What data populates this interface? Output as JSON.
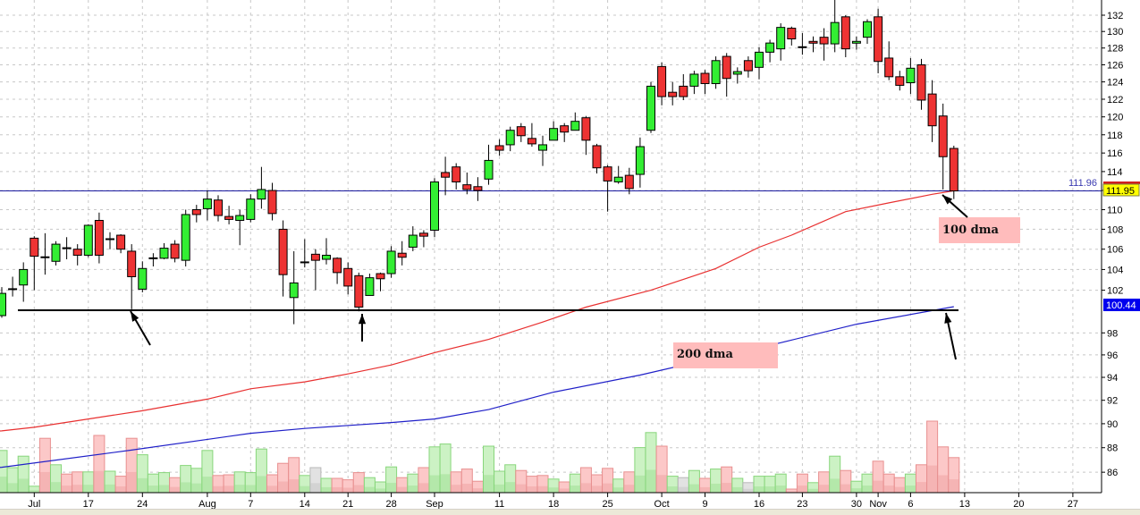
{
  "chart_data": {
    "type": "candlestick",
    "y_scale": "log",
    "grid": true,
    "colors": {
      "up": "#33ee33",
      "down": "#ee3333",
      "ma100": "#e83030",
      "ma200": "#2020c8",
      "price_line": "#1a1aa0",
      "support_line": "#000000"
    },
    "y_ticks": [
      "132",
      "130",
      "128",
      "126",
      "124",
      "122",
      "120",
      "118",
      "116",
      "114",
      "110",
      "108",
      "106",
      "104",
      "102",
      "98",
      "96",
      "94",
      "92",
      "90",
      "88",
      "86"
    ],
    "y_tick_values": [
      132,
      130,
      128,
      126,
      124,
      122,
      120,
      118,
      116,
      114,
      110,
      108,
      106,
      104,
      102,
      98,
      96,
      94,
      92,
      90,
      88,
      86
    ],
    "ylim": [
      85,
      134
    ],
    "x_ticks": [
      "Jul",
      "17",
      "24",
      "Aug",
      "7",
      "14",
      "21",
      "28",
      "Sep",
      "11",
      "18",
      "25",
      "Oct",
      "9",
      "16",
      "23",
      "30",
      "Nov",
      "6",
      "13",
      "20",
      "27"
    ],
    "candles_ohlc": [
      [
        99.6,
        102.3,
        99.4,
        101.7
      ],
      [
        102.1,
        103.3,
        101.4,
        102.1
      ],
      [
        102.5,
        104.7,
        100.9,
        104.0
      ],
      [
        107.1,
        107.3,
        102.0,
        105.3
      ],
      [
        105.2,
        107.6,
        103.5,
        105.2
      ],
      [
        104.8,
        106.8,
        104.4,
        106.5
      ],
      [
        106.1,
        107.2,
        105.0,
        106.1
      ],
      [
        106.0,
        106.5,
        104.4,
        105.4
      ],
      [
        105.4,
        108.5,
        105.2,
        108.4
      ],
      [
        108.9,
        109.7,
        104.6,
        105.4
      ],
      [
        107.0,
        107.7,
        106.0,
        107.0
      ],
      [
        107.4,
        107.5,
        105.6,
        106.0
      ],
      [
        105.8,
        106.5,
        100.2,
        103.3
      ],
      [
        102.1,
        104.8,
        101.8,
        104.1
      ],
      [
        105.1,
        105.6,
        104.3,
        105.1
      ],
      [
        105.1,
        106.6,
        105.0,
        106.1
      ],
      [
        106.5,
        106.9,
        104.7,
        105.1
      ],
      [
        104.9,
        110.0,
        104.3,
        109.5
      ],
      [
        110.0,
        110.5,
        108.7,
        109.5
      ],
      [
        110.1,
        112.0,
        108.9,
        111.1
      ],
      [
        111.0,
        111.5,
        108.8,
        109.4
      ],
      [
        109.3,
        110.4,
        108.5,
        109.0
      ],
      [
        108.9,
        110.0,
        106.4,
        109.4
      ],
      [
        109.0,
        111.6,
        108.7,
        111.1
      ],
      [
        111.1,
        114.5,
        110.1,
        112.1
      ],
      [
        112.0,
        112.8,
        108.9,
        109.6
      ],
      [
        108.0,
        108.9,
        101.4,
        103.5
      ],
      [
        101.3,
        105.8,
        98.8,
        102.7
      ],
      [
        104.7,
        107.0,
        104.2,
        104.7
      ],
      [
        105.5,
        106.0,
        102.0,
        104.9
      ],
      [
        105.0,
        107.1,
        104.5,
        105.4
      ],
      [
        105.1,
        105.2,
        102.6,
        103.7
      ],
      [
        104.1,
        104.7,
        101.6,
        102.4
      ],
      [
        103.4,
        103.7,
        100.0,
        100.4
      ],
      [
        101.5,
        103.6,
        101.5,
        103.2
      ],
      [
        103.6,
        103.7,
        101.9,
        103.1
      ],
      [
        103.6,
        106.3,
        103.2,
        105.8
      ],
      [
        105.6,
        106.8,
        104.4,
        105.2
      ],
      [
        106.2,
        108.3,
        105.8,
        107.4
      ],
      [
        107.6,
        107.9,
        106.2,
        107.3
      ],
      [
        107.9,
        113.3,
        107.2,
        112.9
      ],
      [
        113.9,
        115.6,
        111.5,
        113.4
      ],
      [
        114.5,
        114.9,
        112.1,
        112.9
      ],
      [
        112.6,
        113.9,
        111.6,
        112.1
      ],
      [
        112.4,
        113.4,
        110.9,
        112.0
      ],
      [
        113.2,
        116.9,
        112.6,
        115.2
      ],
      [
        116.8,
        117.5,
        115.7,
        116.3
      ],
      [
        116.9,
        118.9,
        116.2,
        118.5
      ],
      [
        118.9,
        119.3,
        117.2,
        117.9
      ],
      [
        117.6,
        119.3,
        116.7,
        117.0
      ],
      [
        116.3,
        117.9,
        114.6,
        116.9
      ],
      [
        117.4,
        119.5,
        117.4,
        118.7
      ],
      [
        119.0,
        119.3,
        117.2,
        118.3
      ],
      [
        118.5,
        120.5,
        118.5,
        119.5
      ],
      [
        119.9,
        120.1,
        115.8,
        117.4
      ],
      [
        116.8,
        117.0,
        113.8,
        114.4
      ],
      [
        114.5,
        114.7,
        109.8,
        113.0
      ],
      [
        112.9,
        114.6,
        112.7,
        113.4
      ],
      [
        113.6,
        114.4,
        111.6,
        112.2
      ],
      [
        113.7,
        117.7,
        112.3,
        116.7
      ],
      [
        118.5,
        124.0,
        118.2,
        123.5
      ],
      [
        125.8,
        126.3,
        121.3,
        122.3
      ],
      [
        122.8,
        124.0,
        121.3,
        122.3
      ],
      [
        123.5,
        124.9,
        121.9,
        122.3
      ],
      [
        123.5,
        125.3,
        122.6,
        124.9
      ],
      [
        125.0,
        125.4,
        122.6,
        123.8
      ],
      [
        123.8,
        127.0,
        123.2,
        126.5
      ],
      [
        127.0,
        127.4,
        122.3,
        124.4
      ],
      [
        124.9,
        125.7,
        123.8,
        125.2
      ],
      [
        126.5,
        127.0,
        124.5,
        125.3
      ],
      [
        125.7,
        128.1,
        124.3,
        127.5
      ],
      [
        127.5,
        129.0,
        126.3,
        128.6
      ],
      [
        127.9,
        131.0,
        126.5,
        130.5
      ],
      [
        130.4,
        130.6,
        128.3,
        129.1
      ],
      [
        128.1,
        129.8,
        127.2,
        128.1
      ],
      [
        128.8,
        129.4,
        127.5,
        128.6
      ],
      [
        129.3,
        130.4,
        126.5,
        128.5
      ],
      [
        128.5,
        134.0,
        127.5,
        131.1
      ],
      [
        131.8,
        132.0,
        126.9,
        127.9
      ],
      [
        128.6,
        129.4,
        127.8,
        128.8
      ],
      [
        129.3,
        131.5,
        128.5,
        131.2
      ],
      [
        131.8,
        132.8,
        125.0,
        126.4
      ],
      [
        126.8,
        128.8,
        124.2,
        124.6
      ],
      [
        124.6,
        125.3,
        123.0,
        123.6
      ],
      [
        123.9,
        126.8,
        122.6,
        125.6
      ],
      [
        126.0,
        126.7,
        120.8,
        121.9
      ],
      [
        122.6,
        124.2,
        117.2,
        119.0
      ],
      [
        120.1,
        121.5,
        112.1,
        115.6
      ],
      [
        116.5,
        116.8,
        111.1,
        111.95
      ]
    ],
    "volume_relative": [
      0.59,
      0.35,
      0.51,
      0.09,
      0.76,
      0.39,
      0.26,
      0.29,
      0.29,
      0.8,
      0.3,
      0.23,
      0.76,
      0.53,
      0.26,
      0.28,
      0.21,
      0.38,
      0.34,
      0.59,
      0.24,
      0.25,
      0.29,
      0.28,
      0.61,
      0.25,
      0.41,
      0.49,
      0.24,
      0.35,
      0.2,
      0.2,
      0.18,
      0.28,
      0.21,
      0.15,
      0.36,
      0.21,
      0.26,
      0.35,
      0.64,
      0.68,
      0.29,
      0.33,
      0.16,
      0.65,
      0.3,
      0.39,
      0.31,
      0.23,
      0.24,
      0.19,
      0.15,
      0.26,
      0.35,
      0.25,
      0.34,
      0.19,
      0.29,
      0.63,
      0.84,
      0.65,
      0.23,
      0.21,
      0.31,
      0.2,
      0.33,
      0.36,
      0.2,
      0.14,
      0.23,
      0.23,
      0.26,
      0.05,
      0.26,
      0.14,
      0.29,
      0.51,
      0.31,
      0.16,
      0.26,
      0.44,
      0.26,
      0.21,
      0.26,
      0.39,
      1.0,
      0.64,
      0.49
    ],
    "volume_color": [
      "g",
      "g",
      "g",
      "g",
      "r",
      "g",
      "r",
      "r",
      "g",
      "r",
      "g",
      "r",
      "r",
      "g",
      "g",
      "g",
      "r",
      "g",
      "g",
      "g",
      "r",
      "r",
      "g",
      "g",
      "g",
      "r",
      "r",
      "r",
      "g",
      "n",
      "g",
      "r",
      "r",
      "r",
      "g",
      "g",
      "g",
      "r",
      "g",
      "r",
      "g",
      "g",
      "r",
      "r",
      "r",
      "g",
      "g",
      "g",
      "r",
      "r",
      "r",
      "g",
      "r",
      "g",
      "r",
      "r",
      "r",
      "g",
      "r",
      "g",
      "g",
      "r",
      "g",
      "n",
      "g",
      "r",
      "g",
      "r",
      "g",
      "n",
      "g",
      "g",
      "g",
      "r",
      "r",
      "g",
      "r",
      "g",
      "r",
      "g",
      "g",
      "r",
      "r",
      "r",
      "g",
      "r",
      "r",
      "r",
      "r"
    ],
    "ma100_points": [
      [
        1,
        89.4
      ],
      [
        4,
        89.7
      ],
      [
        9,
        90.4
      ],
      [
        14,
        91.1
      ],
      [
        20,
        92.1
      ],
      [
        24,
        93.0
      ],
      [
        29,
        93.6
      ],
      [
        33,
        94.3
      ],
      [
        37,
        95.1
      ],
      [
        41,
        96.2
      ],
      [
        46,
        97.4
      ],
      [
        51,
        99.0
      ],
      [
        55,
        100.4
      ],
      [
        61,
        102.0
      ],
      [
        67,
        104.1
      ],
      [
        71,
        106.2
      ],
      [
        74,
        107.4
      ],
      [
        79,
        109.8
      ],
      [
        83,
        110.7
      ],
      [
        87,
        111.6
      ],
      [
        89,
        111.96
      ]
    ],
    "ma200_points": [
      [
        1,
        86.4
      ],
      [
        13,
        87.8
      ],
      [
        24,
        89.2
      ],
      [
        29,
        89.6
      ],
      [
        37,
        90.1
      ],
      [
        41,
        90.4
      ],
      [
        46,
        91.2
      ],
      [
        52,
        92.7
      ],
      [
        60,
        94.2
      ],
      [
        73,
        97.1
      ],
      [
        80,
        98.8
      ],
      [
        89,
        100.44
      ]
    ],
    "support_level": 100.1,
    "price_line_value": 111.96,
    "price_line_label": "111.96",
    "last_price_label": "111.95",
    "ma200_value_label": "100.44",
    "annotations": {
      "ma100": "100 dma",
      "ma200": "200 dma"
    }
  }
}
